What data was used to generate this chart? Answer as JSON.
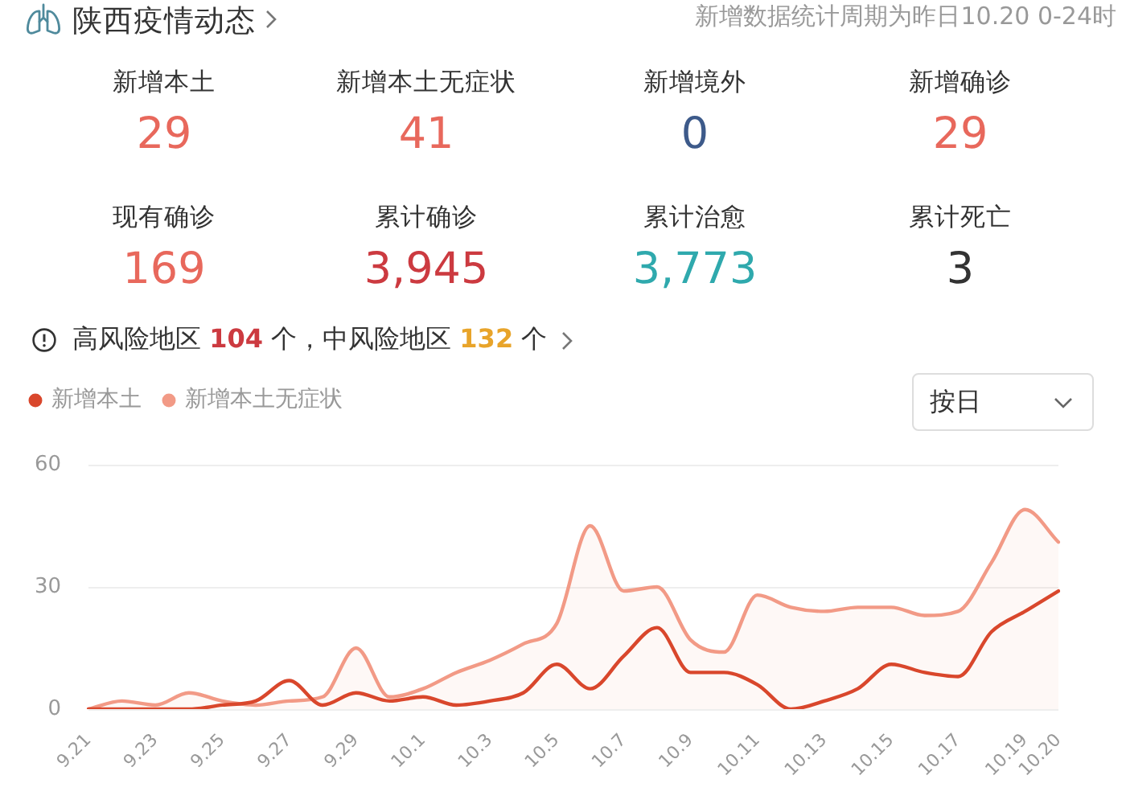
{
  "chart_data": [
    {
      "type": "other",
      "title": "陕西疫情动态",
      "subtitle": "新增数据统计周期为昨日10.20 0-24时",
      "categories": [
        "新增本土",
        "新增本土无症状",
        "新增境外",
        "新增确诊",
        "现有确诊",
        "累计确诊",
        "累计治愈",
        "累计死亡"
      ],
      "value_labels": [
        "29",
        "41",
        "0",
        "29",
        "169",
        "3,945",
        "3,773",
        "3"
      ],
      "colors": [
        "#e8685c",
        "#e8685c",
        "#3d5a8a",
        "#e8685c",
        "#e8685c",
        "#cc3a40",
        "#2fa9ad",
        "#333333"
      ],
      "annotations": [
        "高风险地区 104 个，中风险地区 132 个"
      ]
    },
    {
      "type": "line",
      "categories": [
        "9.21",
        null,
        "9.23",
        null,
        "9.25",
        null,
        "9.27",
        null,
        "9.29",
        null,
        "10.1",
        null,
        "10.3",
        null,
        "10.5",
        null,
        "10.7",
        null,
        "10.9",
        null,
        "10.11",
        null,
        "10.13",
        null,
        "10.15",
        null,
        "10.17",
        null,
        "10.19",
        "10.20"
      ],
      "series": [
        {
          "name": "新增本土",
          "color": "#d9472c",
          "values": [
            0,
            0,
            0,
            0,
            1,
            2,
            7,
            1,
            4,
            2,
            3,
            1,
            2,
            4,
            11,
            5,
            13,
            20,
            9,
            9,
            6,
            0,
            2,
            5,
            11,
            9,
            8,
            19,
            24,
            29
          ]
        },
        {
          "name": "新增本土无症状",
          "type": "area",
          "color": "#f29a86",
          "values": [
            0,
            2,
            1,
            4,
            2,
            1,
            2,
            3,
            15,
            3,
            5,
            9,
            12,
            16,
            21,
            45,
            29,
            30,
            17,
            14,
            28,
            25,
            24,
            25,
            25,
            23,
            24,
            36,
            49,
            41
          ]
        }
      ],
      "ylim": [
        0,
        60
      ],
      "yticks": [
        0,
        30,
        60
      ],
      "grid": "y",
      "legend": "top left",
      "marker": "none",
      "line_style": "solid",
      "annotations": [
        "按日"
      ]
    }
  ]
}
